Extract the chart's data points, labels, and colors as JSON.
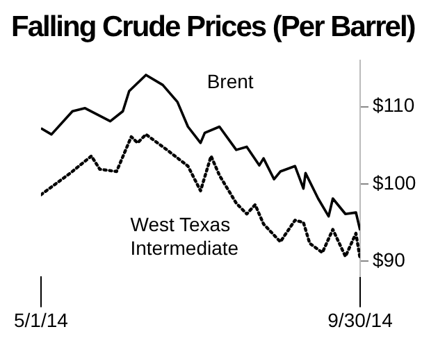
{
  "chart_data": {
    "type": "line",
    "title": "Falling Crude Prices (Per Barrel)",
    "xlim": [
      "2014-05-01",
      "2014-09-30"
    ],
    "xticks": [
      {
        "value": "2014-05-01",
        "label": "5/1/14"
      },
      {
        "value": "2014-09-30",
        "label": "9/30/14"
      }
    ],
    "ylim": [
      88,
      116
    ],
    "yticks": [
      {
        "value": 90,
        "label": "$90"
      },
      {
        "value": 100,
        "label": "$100"
      },
      {
        "value": 110,
        "label": "$110"
      }
    ],
    "grid": false,
    "legend": false,
    "tick_labels": "xy",
    "series": [
      {
        "name": "Brent",
        "color": "#000000",
        "line_style": "solid",
        "x": [
          "2014-05-01",
          "2014-05-06",
          "2014-05-16",
          "2014-05-22",
          "2014-06-03",
          "2014-06-09",
          "2014-06-12",
          "2014-06-20",
          "2014-06-28",
          "2014-07-05",
          "2014-07-10",
          "2014-07-16",
          "2014-07-18",
          "2014-07-25",
          "2014-08-02",
          "2014-08-07",
          "2014-08-13",
          "2014-08-15",
          "2014-08-20",
          "2014-08-23",
          "2014-08-30",
          "2014-09-03",
          "2014-09-04",
          "2014-09-10",
          "2014-09-15",
          "2014-09-17",
          "2014-09-23",
          "2014-09-28",
          "2014-09-30"
        ],
        "values": [
          107.2,
          106.4,
          109.4,
          109.8,
          108.1,
          109.4,
          112,
          114.1,
          112.8,
          110.6,
          107.4,
          105.3,
          106.6,
          107.4,
          104.4,
          104.8,
          102.4,
          103.3,
          100.6,
          101.6,
          102.3,
          99.4,
          101.4,
          98.1,
          95.8,
          98.1,
          96.1,
          96.3,
          94
        ]
      },
      {
        "name": "West Texas Intermediate",
        "color": "#000000",
        "line_style": "dotted",
        "x": [
          "2014-05-01",
          "2014-05-07",
          "2014-05-15",
          "2014-05-25",
          "2014-05-29",
          "2014-06-06",
          "2014-06-13",
          "2014-06-16",
          "2014-06-20",
          "2014-06-30",
          "2014-07-10",
          "2014-07-16",
          "2014-07-21",
          "2014-07-25",
          "2014-08-02",
          "2014-08-07",
          "2014-08-11",
          "2014-08-15",
          "2014-08-23",
          "2014-08-30",
          "2014-09-03",
          "2014-09-06",
          "2014-09-12",
          "2014-09-17",
          "2014-09-23",
          "2014-09-28",
          "2014-09-30"
        ],
        "values": [
          98.6,
          99.8,
          101.4,
          103.6,
          101.9,
          101.6,
          106.1,
          105.3,
          106.4,
          104.4,
          102.3,
          99.1,
          103.6,
          101.1,
          97.5,
          96.1,
          97.3,
          94.8,
          92.5,
          95.3,
          95,
          92.3,
          91.1,
          94.1,
          90.6,
          93.6,
          90.3
        ]
      }
    ]
  }
}
